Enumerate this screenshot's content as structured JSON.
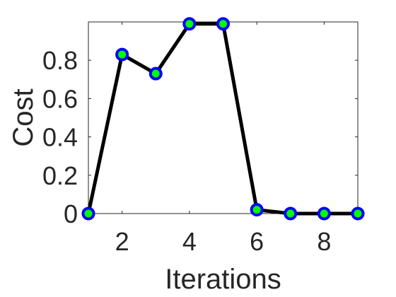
{
  "chart_data": {
    "type": "line",
    "title": "",
    "xlabel": "Iterations",
    "ylabel": "Cost",
    "xlim": [
      1,
      9
    ],
    "ylim": [
      0,
      1
    ],
    "xticks": [
      2,
      4,
      6,
      8
    ],
    "xtick_labels": [
      "2",
      "4",
      "6",
      "8"
    ],
    "yticks": [
      0,
      0.2,
      0.4,
      0.6,
      0.8
    ],
    "ytick_labels": [
      "0",
      "0.2",
      "0.4",
      "0.6",
      "0.8"
    ],
    "grid": false,
    "legend": "none",
    "series": [
      {
        "x": [
          1,
          2,
          3,
          4,
          5,
          6,
          7,
          8,
          9
        ],
        "y": [
          0.0,
          0.83,
          0.73,
          0.99,
          0.99,
          0.02,
          0.0,
          0.0,
          0.0
        ],
        "line_color": "#000000",
        "marker_edge_color": "#0000ff",
        "marker_face_color": "#00ff00"
      }
    ]
  }
}
